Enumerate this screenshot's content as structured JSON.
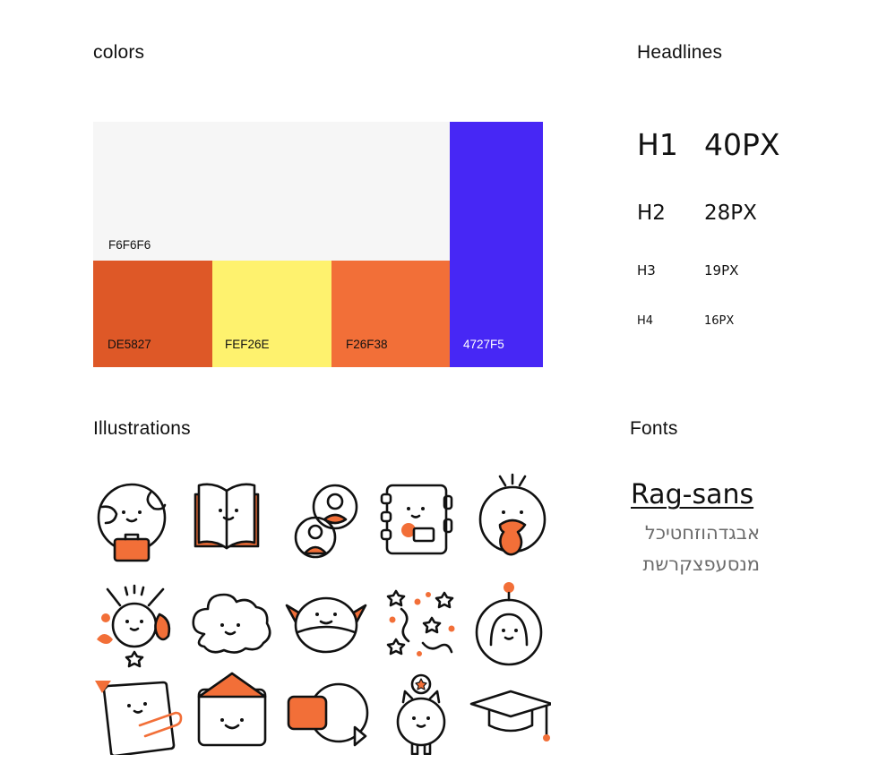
{
  "sections": {
    "colors": "colors",
    "headlines": "Headlines",
    "illustrations": "Illustrations",
    "fonts": "Fonts"
  },
  "colors": [
    {
      "label": "F6F6F6",
      "hex": "#F6F6F6",
      "text_color": "#111111"
    },
    {
      "label": "DE5827",
      "hex": "#DE5827",
      "text_color": "#111111"
    },
    {
      "label": "FEF26E",
      "hex": "#FEF26E",
      "text_color": "#111111"
    },
    {
      "label": "F26F38",
      "hex": "#F26F38",
      "text_color": "#111111"
    },
    {
      "label": "4727F5",
      "hex": "#4727F5",
      "text_color": "#ffffff"
    }
  ],
  "headlines": [
    {
      "name": "H1",
      "size": "40PX"
    },
    {
      "name": "H2",
      "size": "28PX"
    },
    {
      "name": "H3",
      "size": "19PX"
    },
    {
      "name": "H4",
      "size": "16PX"
    }
  ],
  "fonts": {
    "name": "Rag-sans",
    "hebrew_line_1": "אבגדהוזחטיכל",
    "hebrew_line_2": "מנסעפצקרשת"
  },
  "icons": [
    "globe-briefcase-icon",
    "open-book-icon",
    "user-profiles-icon",
    "notebook-icon",
    "bird-icon",
    "bunny-fox-icon",
    "cloud-icon",
    "yoda-icon",
    "confetti-stars-icon",
    "astronaut-icon",
    "paper-clip-icon",
    "envelope-icon",
    "video-player-icon",
    "cat-medal-icon",
    "graduation-cap-icon"
  ],
  "accent_color": "#F26F38"
}
